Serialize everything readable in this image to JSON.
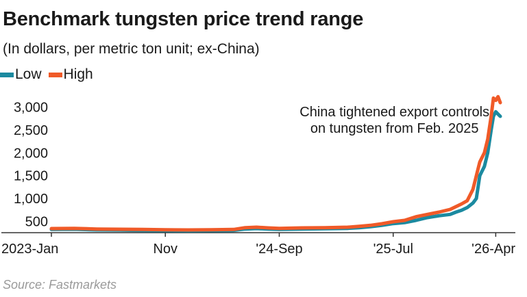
{
  "title": "Benchmark tungsten price trend range",
  "subtitle": "(In dollars, per metric ton unit; ex-China)",
  "source": "Source: Fastmarkets",
  "legend": {
    "low": "Low",
    "high": "High"
  },
  "colors": {
    "low": "#1b8aa0",
    "high": "#f05a28",
    "axis": "#333333",
    "grid": "#dddddd"
  },
  "chart_data": {
    "type": "line",
    "title": "Benchmark tungsten price trend range",
    "subtitle": "(In dollars, per metric ton unit; ex-China)",
    "xlabel": "",
    "ylabel": "",
    "ylim": [
      250,
      3250
    ],
    "xlim": [
      0,
      40
    ],
    "grid": false,
    "legend_position": "top-left",
    "y_ticks": [
      {
        "value": 500,
        "label": "500"
      },
      {
        "value": 1000,
        "label": "1,000"
      },
      {
        "value": 1500,
        "label": "1,500"
      },
      {
        "value": 2000,
        "label": "2,000"
      },
      {
        "value": 2500,
        "label": "2,500"
      },
      {
        "value": 3000,
        "label": "3,000"
      }
    ],
    "x_ticks": [
      {
        "month": 0,
        "label": "2023-Jan"
      },
      {
        "month": 10,
        "label": "Nov"
      },
      {
        "month": 20,
        "label": "'24-Sep"
      },
      {
        "month": 30,
        "label": "'25-Jul"
      },
      {
        "month": 39,
        "label": "'26-Apr"
      }
    ],
    "annotation": {
      "lines": [
        "China tightened export controls",
        "on tungsten from Feb. 2025"
      ],
      "month": 23.5,
      "value": 2950
    },
    "series": [
      {
        "name": "Low",
        "key": "low",
        "points": [
          [
            0,
            320
          ],
          [
            2,
            325
          ],
          [
            4,
            310
          ],
          [
            6,
            305
          ],
          [
            8,
            300
          ],
          [
            10,
            295
          ],
          [
            12,
            290
          ],
          [
            14,
            295
          ],
          [
            16,
            300
          ],
          [
            17,
            330
          ],
          [
            18,
            340
          ],
          [
            19,
            330
          ],
          [
            20,
            320
          ],
          [
            22,
            330
          ],
          [
            24,
            335
          ],
          [
            26,
            345
          ],
          [
            27,
            360
          ],
          [
            28,
            380
          ],
          [
            29,
            410
          ],
          [
            30,
            450
          ],
          [
            31,
            470
          ],
          [
            32,
            520
          ],
          [
            33,
            580
          ],
          [
            34,
            620
          ],
          [
            35,
            650
          ],
          [
            35.5,
            700
          ],
          [
            36,
            740
          ],
          [
            36.5,
            800
          ],
          [
            37,
            900
          ],
          [
            37.3,
            1000
          ],
          [
            37.6,
            1500
          ],
          [
            38,
            1700
          ],
          [
            38.3,
            2000
          ],
          [
            38.6,
            2500
          ],
          [
            38.8,
            2800
          ],
          [
            39,
            2900
          ],
          [
            39.2,
            2850
          ],
          [
            39.4,
            2800
          ]
        ]
      },
      {
        "name": "High",
        "key": "high",
        "points": [
          [
            0,
            340
          ],
          [
            2,
            345
          ],
          [
            4,
            330
          ],
          [
            6,
            325
          ],
          [
            8,
            320
          ],
          [
            10,
            315
          ],
          [
            12,
            310
          ],
          [
            14,
            315
          ],
          [
            16,
            320
          ],
          [
            17,
            360
          ],
          [
            18,
            370
          ],
          [
            19,
            355
          ],
          [
            20,
            345
          ],
          [
            22,
            355
          ],
          [
            24,
            360
          ],
          [
            26,
            370
          ],
          [
            27,
            390
          ],
          [
            28,
            410
          ],
          [
            29,
            445
          ],
          [
            30,
            490
          ],
          [
            31,
            520
          ],
          [
            32,
            600
          ],
          [
            33,
            650
          ],
          [
            34,
            700
          ],
          [
            35,
            760
          ],
          [
            35.5,
            820
          ],
          [
            36,
            880
          ],
          [
            36.5,
            950
          ],
          [
            37,
            1200
          ],
          [
            37.3,
            1500
          ],
          [
            37.6,
            1800
          ],
          [
            38,
            2000
          ],
          [
            38.3,
            2300
          ],
          [
            38.6,
            2800
          ],
          [
            38.8,
            3200
          ],
          [
            39,
            3150
          ],
          [
            39.2,
            3230
          ],
          [
            39.4,
            3100
          ]
        ]
      }
    ]
  }
}
